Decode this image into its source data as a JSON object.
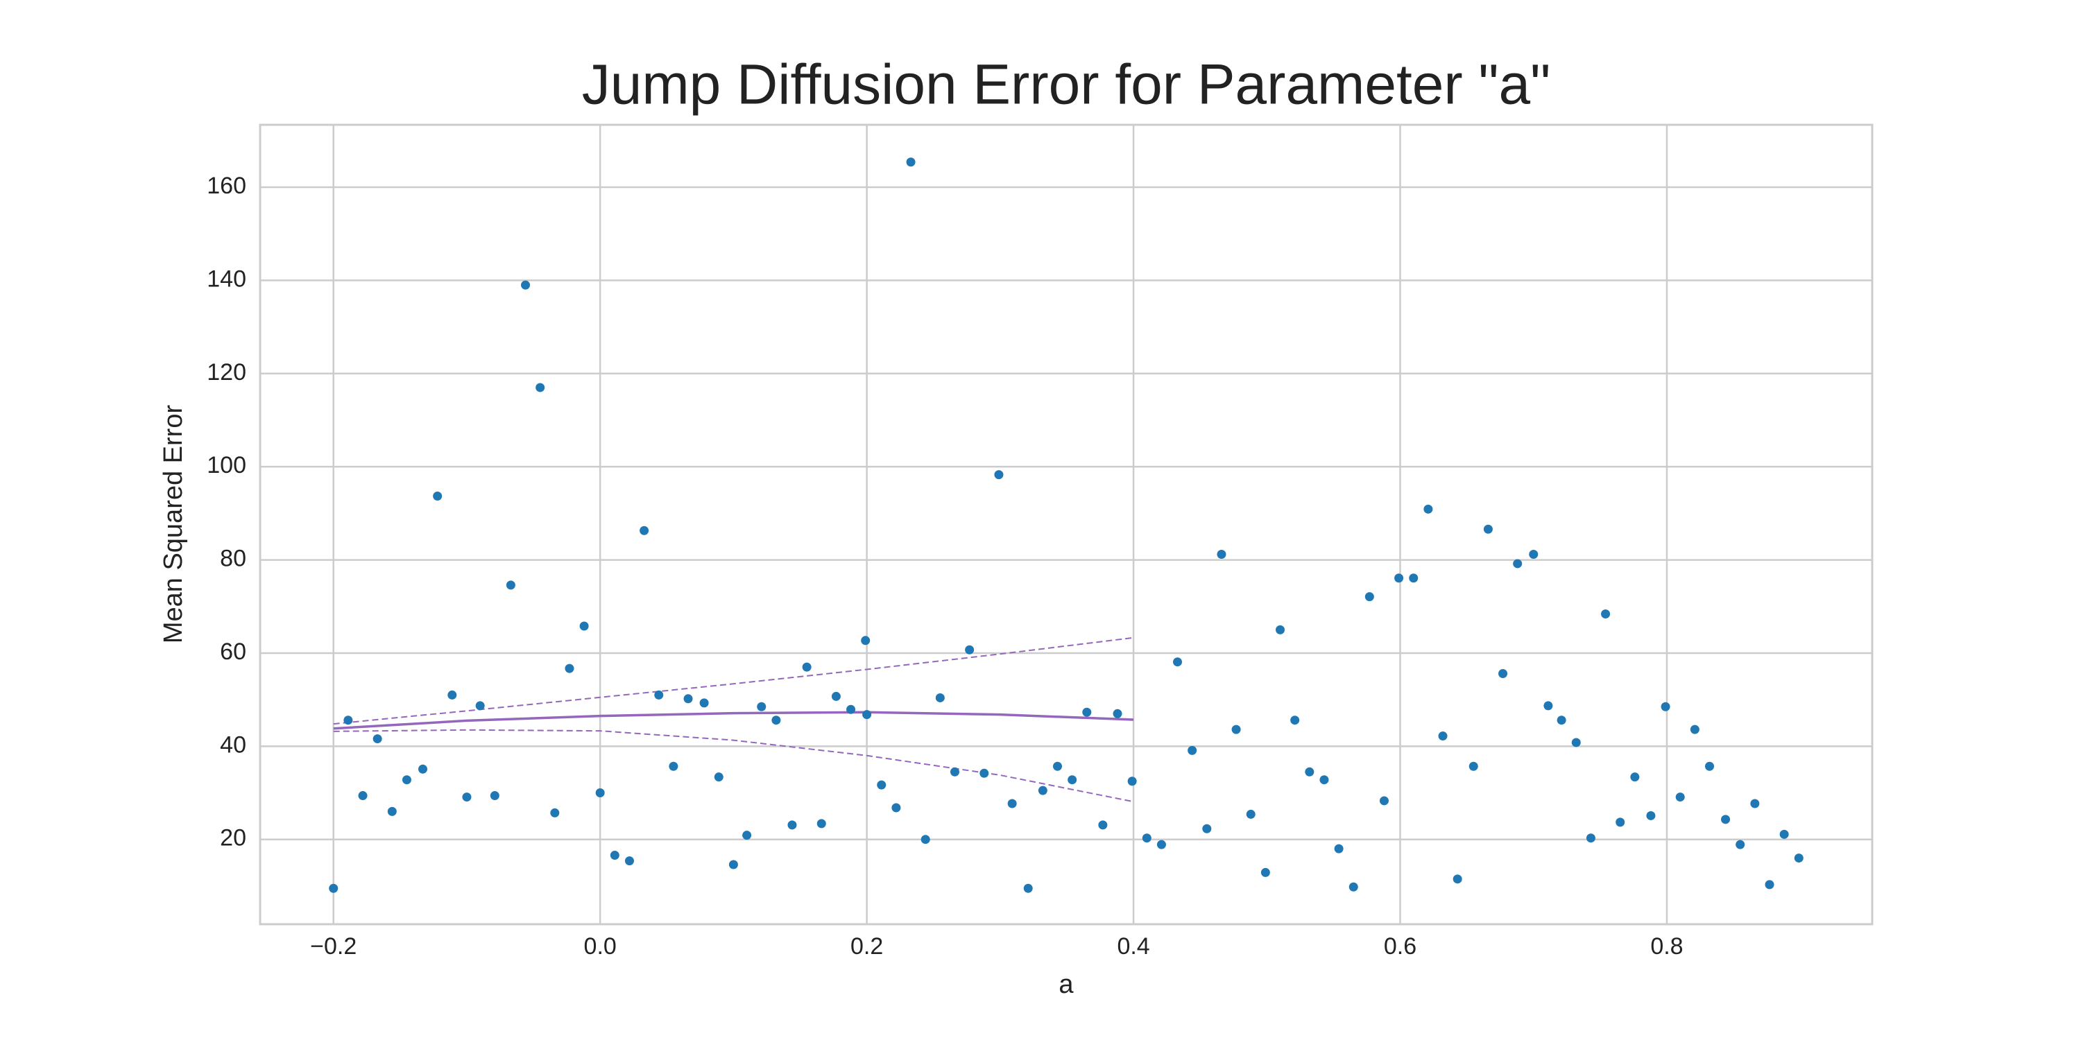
{
  "chart_data": {
    "type": "scatter",
    "title": "Jump Diffusion Error for Parameter \"a\"",
    "xlabel": "a",
    "ylabel": "Mean Squared Error",
    "xlim": [
      -0.255,
      0.954
    ],
    "ylim": [
      1.8,
      173.4
    ],
    "xticks": [
      {
        "value": -0.2,
        "label": "−0.2"
      },
      {
        "value": 0,
        "label": "0.0"
      },
      0.2,
      0.4,
      0.6,
      0.8
    ],
    "yticks": [
      20,
      40,
      60,
      80,
      100,
      120,
      140,
      160
    ],
    "grid": true,
    "color": "#1f77b4",
    "x": [
      -0.2,
      -0.189,
      -0.178,
      -0.167,
      -0.156,
      -0.145,
      -0.133,
      -0.122,
      -0.111,
      -0.1,
      -0.09,
      -0.079,
      -0.067,
      -0.056,
      -0.045,
      -0.034,
      -0.023,
      -0.012,
      0,
      0.011,
      0.022,
      0.033,
      0.044,
      0.055,
      0.066,
      0.078,
      0.089,
      0.1,
      0.11,
      0.121,
      0.132,
      0.144,
      0.155,
      0.166,
      0.177,
      0.188,
      0.199,
      0.2,
      0.211,
      0.222,
      0.233,
      0.244,
      0.255,
      0.266,
      0.277,
      0.288,
      0.299,
      0.309,
      0.321,
      0.332,
      0.343,
      0.354,
      0.365,
      0.377,
      0.388,
      0.399,
      0.41,
      0.421,
      0.433,
      0.444,
      0.455,
      0.466,
      0.477,
      0.488,
      0.499,
      0.51,
      0.521,
      0.532,
      0.543,
      0.554,
      0.565,
      0.577,
      0.588,
      0.599,
      0.61,
      0.621,
      0.632,
      0.643,
      0.655,
      0.666,
      0.677,
      0.688,
      0.7,
      0.711,
      0.721,
      0.732,
      0.743,
      0.754,
      0.765,
      0.776,
      0.788,
      0.799,
      0.81,
      0.821,
      0.832,
      0.844,
      0.855,
      0.866,
      0.877,
      0.888,
      0.899
    ],
    "values": [
      9.5,
      45.6,
      29.4,
      41.6,
      26.0,
      32.8,
      35.1,
      93.7,
      51.0,
      29.1,
      48.7,
      29.4,
      74.6,
      139.0,
      117.0,
      25.7,
      56.7,
      65.8,
      30.0,
      16.6,
      15.4,
      86.3,
      51.0,
      35.7,
      50.2,
      49.3,
      33.4,
      14.6,
      20.9,
      48.5,
      45.6,
      23.1,
      57.0,
      23.4,
      50.7,
      47.9,
      62.7,
      46.8,
      31.7,
      26.8,
      165.4,
      20.0,
      50.4,
      34.5,
      60.7,
      34.2,
      98.3,
      27.7,
      9.5,
      30.5,
      35.7,
      32.8,
      47.3,
      23.1,
      47.0,
      32.5,
      20.3,
      18.9,
      58.1,
      39.1,
      22.3,
      81.2,
      43.6,
      25.4,
      12.9,
      65.0,
      45.6,
      34.5,
      32.8,
      18.0,
      9.8,
      72.1,
      28.3,
      76.1,
      76.1,
      90.9,
      42.2,
      11.5,
      35.7,
      86.6,
      55.6,
      79.2,
      81.2,
      48.7,
      45.6,
      40.8,
      20.3,
      68.4,
      23.7,
      33.4,
      25.1,
      48.5,
      29.1,
      43.6,
      35.7,
      24.3,
      18.9,
      27.7,
      10.3,
      21.1,
      16.0
    ],
    "lines": [
      {
        "x": [
          -0.2,
          -0.1,
          0,
          0.1,
          0.2,
          0.3,
          0.4
        ],
        "values": [
          43.8,
          45.5,
          46.5,
          47.1,
          47.3,
          46.8,
          45.7
        ],
        "color": "#9467bd",
        "dashed": false
      },
      {
        "x": [
          -0.2,
          -0.1,
          0,
          0.1,
          0.2,
          0.3,
          0.4
        ],
        "values": [
          44.8,
          47.6,
          50.5,
          53.4,
          56.5,
          59.8,
          63.3
        ],
        "color": "#9467bd",
        "dashed": true
      },
      {
        "x": [
          -0.2,
          -0.1,
          0,
          0.1,
          0.2,
          0.3,
          0.4
        ],
        "values": [
          43.2,
          43.5,
          43.3,
          41.3,
          38.0,
          33.8,
          28.1
        ],
        "color": "#9467bd",
        "dashed": true
      }
    ]
  }
}
